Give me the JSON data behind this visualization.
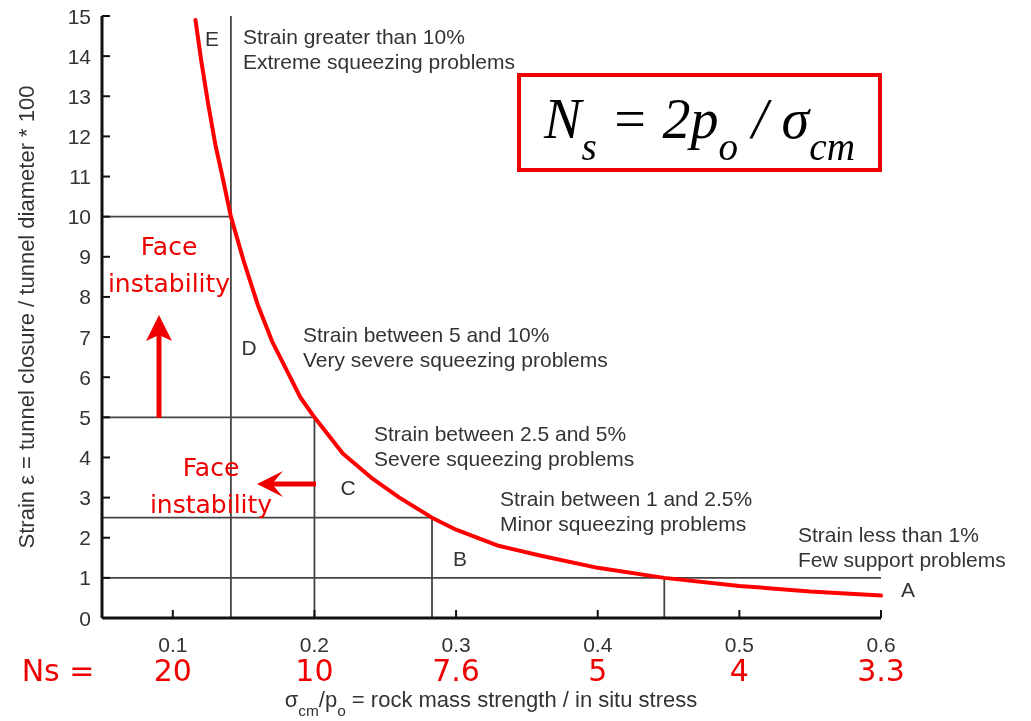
{
  "chart_data": {
    "type": "line",
    "xlabel": "σ$_{cm}$/p$_{o}$ = rock mass strength / in situ stress",
    "ylabel": "Strain ε = tunnel closure / tunnel diameter * 100",
    "xlim": [
      0.05,
      0.6
    ],
    "xticks": [
      0.1,
      0.2,
      0.3,
      0.4,
      0.5,
      0.6
    ],
    "ylim": [
      0,
      15
    ],
    "yticks": [
      0,
      1,
      2,
      3,
      4,
      5,
      6,
      7,
      8,
      9,
      10,
      11,
      12,
      13,
      14,
      15
    ],
    "series": [
      {
        "color": "#444444",
        "x": [
          0.05,
          0.141
        ],
        "values": [
          10,
          10
        ]
      },
      {
        "color": "#444444",
        "x": [
          0.141,
          0.141
        ],
        "values": [
          15,
          0
        ]
      },
      {
        "color": "#444444",
        "x": [
          0.05,
          0.2,
          0.2
        ],
        "values": [
          5,
          5,
          0
        ]
      },
      {
        "color": "#444444",
        "x": [
          0.05,
          0.283,
          0.283
        ],
        "values": [
          2.5,
          2.5,
          0
        ]
      },
      {
        "color": "#444444",
        "x": [
          0.05,
          0.6
        ],
        "values": [
          1,
          1
        ]
      },
      {
        "color": "#444444",
        "x": [
          0.447,
          0.447
        ],
        "values": [
          1,
          0
        ]
      },
      {
        "color": "#ff0000",
        "x": [
          0.116,
          0.12,
          0.125,
          0.13,
          0.135,
          0.141,
          0.15,
          0.16,
          0.17,
          0.18,
          0.19,
          0.2,
          0.22,
          0.24,
          0.26,
          0.283,
          0.3,
          0.33,
          0.36,
          0.4,
          0.447,
          0.5,
          0.55,
          0.6
        ],
        "values": [
          14.9,
          13.9,
          12.8,
          11.8,
          11.0,
          10.0,
          8.9,
          7.8,
          6.9,
          6.2,
          5.5,
          5.0,
          4.1,
          3.5,
          3.0,
          2.5,
          2.2,
          1.8,
          1.55,
          1.25,
          1.0,
          0.8,
          0.66,
          0.56
        ]
      }
    ],
    "annotations": [
      "E",
      "Strain greater than 10%\nExtreme squeezing problems",
      "D",
      "Strain between 5 and 10%\nVery severe squeezing problems",
      "C",
      "Strain between 2.5 and 5%\nSevere squeezing problems",
      "B",
      "Strain between 1 and 2.5%\nMinor squeezing problems",
      "Strain less than 1%\nFew support problems",
      {
        "text": "A",
        "x": 0.6,
        "y": 0.56
      },
      "Face\ninstability",
      "Face\ninstability",
      "N$_{s}$ = 2p$_{o}$ / σ$_{cm}$",
      "Ns =",
      "20",
      "10",
      "7.6",
      "5",
      "4",
      "3.3"
    ]
  }
}
